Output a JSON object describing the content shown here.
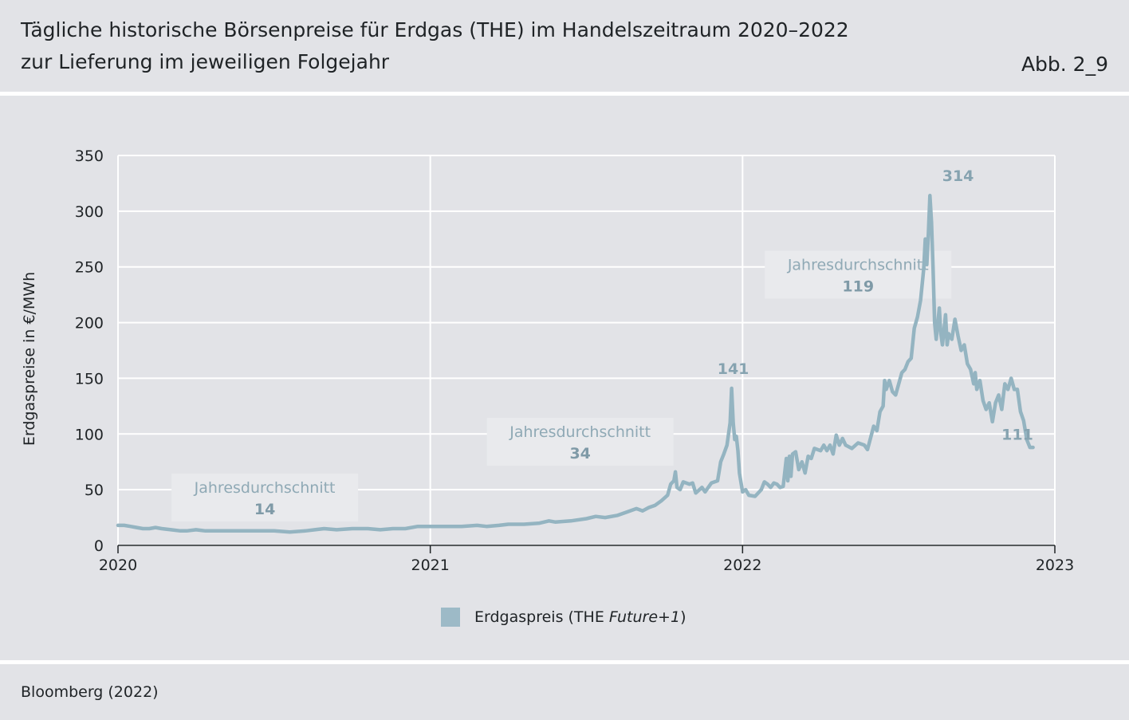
{
  "header": {
    "title_line1": "Tägliche historische Börsenpreise für Erdgas (THE) im Handelszeitraum 2020–2022",
    "title_line2": "zur Lieferung im jeweiligen Folgejahr",
    "figure_label": "Abb. 2_9"
  },
  "source": "Bloomberg (2022)",
  "legend": {
    "prefix": "Erdgaspreis (THE ",
    "italic": "Future+1",
    "suffix": ")"
  },
  "colors": {
    "line": "#94b4c1",
    "swatch": "#9dbac7",
    "annotation_box": "#e9eaed",
    "grid": "#ffffff"
  },
  "chart_data": {
    "type": "line",
    "ylabel": "Erdgaspreise in €/MWh",
    "ylim": [
      0,
      350
    ],
    "yticks": [
      0,
      50,
      100,
      150,
      200,
      250,
      300,
      350
    ],
    "xlim": [
      2020,
      2023
    ],
    "xticks": [
      "2020",
      "2021",
      "2022",
      "2023"
    ],
    "grid": true,
    "legend_position": "bottom-center",
    "annotations": [
      {
        "label": "Jahresdurchschnitt",
        "value": "14",
        "x": 2020.47,
        "y": 63
      },
      {
        "label": "Jahresdurchschnitt",
        "value": "34",
        "x": 2021.48,
        "y": 113
      },
      {
        "label": "Jahresdurchschnitt",
        "value": "119",
        "x": 2022.37,
        "y": 263
      }
    ],
    "peak_labels": [
      {
        "text": "141",
        "x": 2021.97,
        "y": 154
      },
      {
        "text": "314",
        "x": 2022.69,
        "y": 327
      },
      {
        "text": "111",
        "x": 2022.88,
        "y": 95
      }
    ],
    "series": [
      {
        "name": "Erdgaspreis (THE Future+1)",
        "points": [
          [
            2020.0,
            18
          ],
          [
            2020.02,
            18
          ],
          [
            2020.04,
            17
          ],
          [
            2020.06,
            16
          ],
          [
            2020.08,
            15
          ],
          [
            2020.1,
            15
          ],
          [
            2020.12,
            16
          ],
          [
            2020.14,
            15
          ],
          [
            2020.17,
            14
          ],
          [
            2020.2,
            13
          ],
          [
            2020.22,
            13
          ],
          [
            2020.25,
            14
          ],
          [
            2020.28,
            13
          ],
          [
            2020.31,
            13
          ],
          [
            2020.35,
            13
          ],
          [
            2020.4,
            13
          ],
          [
            2020.45,
            13
          ],
          [
            2020.5,
            13
          ],
          [
            2020.55,
            12
          ],
          [
            2020.6,
            13
          ],
          [
            2020.63,
            14
          ],
          [
            2020.66,
            15
          ],
          [
            2020.7,
            14
          ],
          [
            2020.75,
            15
          ],
          [
            2020.8,
            15
          ],
          [
            2020.84,
            14
          ],
          [
            2020.88,
            15
          ],
          [
            2020.92,
            15
          ],
          [
            2020.96,
            17
          ],
          [
            2021.0,
            17
          ],
          [
            2021.05,
            17
          ],
          [
            2021.1,
            17
          ],
          [
            2021.15,
            18
          ],
          [
            2021.18,
            17
          ],
          [
            2021.22,
            18
          ],
          [
            2021.25,
            19
          ],
          [
            2021.3,
            19
          ],
          [
            2021.35,
            20
          ],
          [
            2021.38,
            22
          ],
          [
            2021.4,
            21
          ],
          [
            2021.45,
            22
          ],
          [
            2021.5,
            24
          ],
          [
            2021.53,
            26
          ],
          [
            2021.56,
            25
          ],
          [
            2021.6,
            27
          ],
          [
            2021.63,
            30
          ],
          [
            2021.66,
            33
          ],
          [
            2021.68,
            31
          ],
          [
            2021.7,
            34
          ],
          [
            2021.72,
            36
          ],
          [
            2021.74,
            40
          ],
          [
            2021.76,
            45
          ],
          [
            2021.77,
            55
          ],
          [
            2021.78,
            58
          ],
          [
            2021.785,
            66
          ],
          [
            2021.79,
            52
          ],
          [
            2021.8,
            50
          ],
          [
            2021.81,
            57
          ],
          [
            2021.83,
            55
          ],
          [
            2021.84,
            56
          ],
          [
            2021.85,
            47
          ],
          [
            2021.87,
            52
          ],
          [
            2021.88,
            48
          ],
          [
            2021.89,
            52
          ],
          [
            2021.9,
            56
          ],
          [
            2021.92,
            58
          ],
          [
            2021.93,
            75
          ],
          [
            2021.94,
            82
          ],
          [
            2021.95,
            90
          ],
          [
            2021.96,
            110
          ],
          [
            2021.965,
            141
          ],
          [
            2021.97,
            110
          ],
          [
            2021.975,
            95
          ],
          [
            2021.98,
            98
          ],
          [
            2021.985,
            85
          ],
          [
            2021.99,
            65
          ],
          [
            2022.0,
            48
          ],
          [
            2022.01,
            50
          ],
          [
            2022.02,
            45
          ],
          [
            2022.04,
            44
          ],
          [
            2022.06,
            50
          ],
          [
            2022.07,
            57
          ],
          [
            2022.08,
            55
          ],
          [
            2022.09,
            52
          ],
          [
            2022.1,
            56
          ],
          [
            2022.11,
            55
          ],
          [
            2022.12,
            52
          ],
          [
            2022.13,
            53
          ],
          [
            2022.14,
            78
          ],
          [
            2022.145,
            58
          ],
          [
            2022.15,
            80
          ],
          [
            2022.155,
            62
          ],
          [
            2022.16,
            82
          ],
          [
            2022.17,
            84
          ],
          [
            2022.18,
            68
          ],
          [
            2022.19,
            75
          ],
          [
            2022.2,
            65
          ],
          [
            2022.21,
            80
          ],
          [
            2022.22,
            78
          ],
          [
            2022.23,
            87
          ],
          [
            2022.25,
            85
          ],
          [
            2022.26,
            90
          ],
          [
            2022.27,
            85
          ],
          [
            2022.28,
            90
          ],
          [
            2022.29,
            82
          ],
          [
            2022.3,
            99
          ],
          [
            2022.31,
            90
          ],
          [
            2022.32,
            96
          ],
          [
            2022.33,
            90
          ],
          [
            2022.35,
            87
          ],
          [
            2022.37,
            92
          ],
          [
            2022.39,
            90
          ],
          [
            2022.4,
            86
          ],
          [
            2022.42,
            107
          ],
          [
            2022.43,
            103
          ],
          [
            2022.44,
            120
          ],
          [
            2022.45,
            125
          ],
          [
            2022.455,
            148
          ],
          [
            2022.46,
            140
          ],
          [
            2022.47,
            148
          ],
          [
            2022.48,
            138
          ],
          [
            2022.49,
            135
          ],
          [
            2022.5,
            145
          ],
          [
            2022.51,
            155
          ],
          [
            2022.52,
            158
          ],
          [
            2022.53,
            165
          ],
          [
            2022.54,
            168
          ],
          [
            2022.55,
            195
          ],
          [
            2022.56,
            205
          ],
          [
            2022.57,
            220
          ],
          [
            2022.58,
            248
          ],
          [
            2022.585,
            275
          ],
          [
            2022.59,
            252
          ],
          [
            2022.595,
            280
          ],
          [
            2022.6,
            314
          ],
          [
            2022.605,
            290
          ],
          [
            2022.61,
            250
          ],
          [
            2022.615,
            200
          ],
          [
            2022.62,
            185
          ],
          [
            2022.63,
            213
          ],
          [
            2022.635,
            190
          ],
          [
            2022.64,
            180
          ],
          [
            2022.65,
            207
          ],
          [
            2022.655,
            180
          ],
          [
            2022.66,
            190
          ],
          [
            2022.67,
            185
          ],
          [
            2022.68,
            203
          ],
          [
            2022.69,
            188
          ],
          [
            2022.7,
            175
          ],
          [
            2022.71,
            180
          ],
          [
            2022.72,
            163
          ],
          [
            2022.73,
            158
          ],
          [
            2022.74,
            145
          ],
          [
            2022.745,
            155
          ],
          [
            2022.75,
            140
          ],
          [
            2022.76,
            148
          ],
          [
            2022.77,
            130
          ],
          [
            2022.78,
            122
          ],
          [
            2022.79,
            128
          ],
          [
            2022.8,
            111
          ],
          [
            2022.81,
            128
          ],
          [
            2022.82,
            135
          ],
          [
            2022.83,
            122
          ],
          [
            2022.84,
            145
          ],
          [
            2022.85,
            140
          ],
          [
            2022.86,
            150
          ],
          [
            2022.87,
            140
          ],
          [
            2022.88,
            140
          ],
          [
            2022.89,
            120
          ],
          [
            2022.9,
            112
          ],
          [
            2022.91,
            95
          ],
          [
            2022.92,
            88
          ],
          [
            2022.93,
            88
          ]
        ]
      }
    ]
  }
}
